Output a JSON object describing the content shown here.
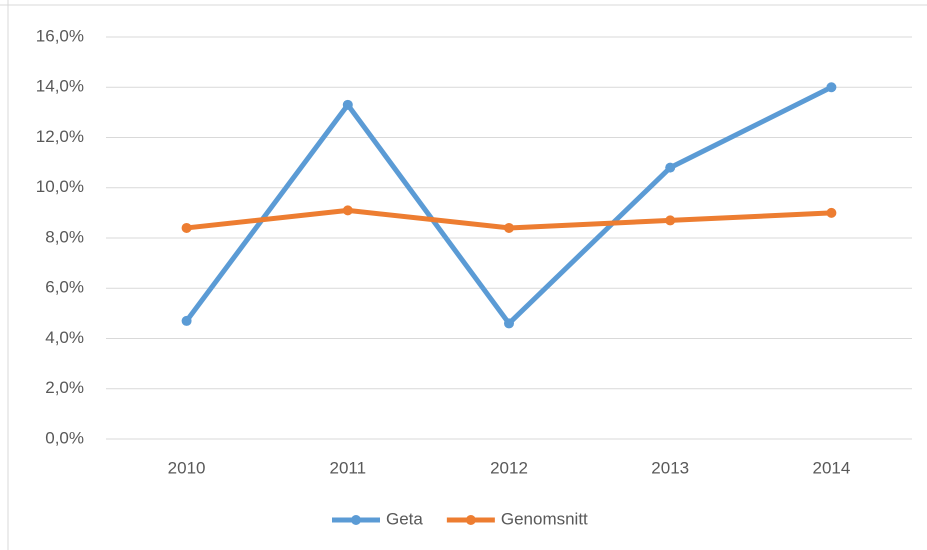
{
  "chart_data": {
    "type": "line",
    "categories": [
      "2010",
      "2011",
      "2012",
      "2013",
      "2014"
    ],
    "series": [
      {
        "name": "Geta",
        "color": "#5b9bd5",
        "values": [
          4.7,
          13.3,
          4.6,
          10.8,
          14.0
        ]
      },
      {
        "name": "Genomsnitt",
        "color": "#ed7d31",
        "values": [
          8.4,
          9.1,
          8.4,
          8.7,
          9.0
        ]
      }
    ],
    "ylim": [
      0,
      16
    ],
    "yticks": [
      {
        "value": 0,
        "label": "0,0%"
      },
      {
        "value": 2,
        "label": "2,0%"
      },
      {
        "value": 4,
        "label": "4,0%"
      },
      {
        "value": 6,
        "label": "6,0%"
      },
      {
        "value": 8,
        "label": "8,0%"
      },
      {
        "value": 10,
        "label": "10,0%"
      },
      {
        "value": 12,
        "label": "12,0%"
      },
      {
        "value": 14,
        "label": "14,0%"
      },
      {
        "value": 16,
        "label": "16,0%"
      }
    ],
    "grid": true,
    "legend": "bottom"
  }
}
